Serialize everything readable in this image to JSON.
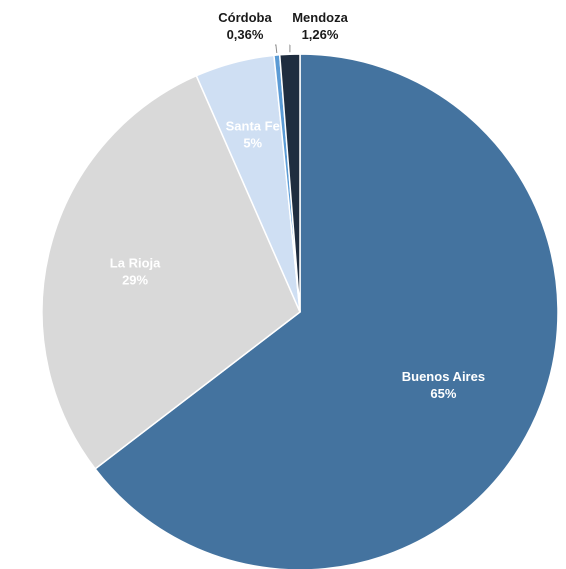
{
  "chart_data": {
    "type": "pie",
    "title": "",
    "categories": [
      "Buenos Aires",
      "La Rioja",
      "Santa Fe",
      "Córdoba",
      "Mendoza"
    ],
    "values": [
      65,
      29,
      5,
      0.36,
      1.26
    ],
    "value_labels": [
      "65%",
      "29%",
      "5%",
      "0,36%",
      "1,26%"
    ],
    "colors": [
      "#44739F",
      "#D9D9D9",
      "#CFDFF3",
      "#5B9BD5",
      "#1F2D3F"
    ],
    "label_colors": [
      "#FFFFFF",
      "#FFFFFF",
      "#FFFFFF",
      "#1A1A1A",
      "#1A1A1A"
    ],
    "start_angle_deg": 0,
    "direction": "clockwise",
    "legend": "none"
  }
}
